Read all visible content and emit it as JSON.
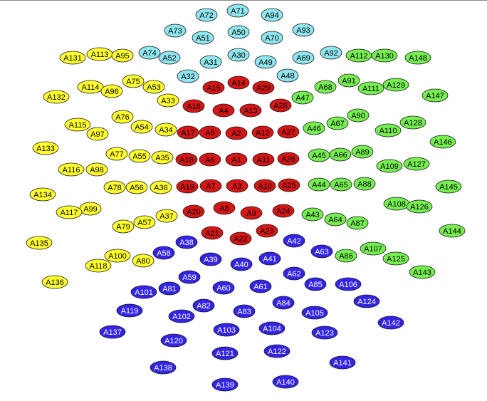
{
  "colors": {
    "cyan": "#8fe6ee",
    "red": "#d51616",
    "yellow": "#ffff2e",
    "green": "#76ee52",
    "blue": "#3324e6",
    "outline": "#1a1a1a",
    "text_dark": "#000000",
    "text_light": "#ffffff"
  },
  "groups": {
    "cyan": [
      "A72",
      "A71",
      "A94",
      "A73",
      "A50",
      "A51",
      "A70",
      "A93",
      "A74",
      "A52",
      "A30",
      "A31",
      "A49",
      "A69",
      "A92",
      "A32",
      "A48"
    ],
    "red": [
      "A15",
      "A14",
      "A29",
      "A16",
      "A4",
      "A13",
      "A28",
      "A17",
      "A5",
      "A2",
      "A12",
      "A27",
      "A18",
      "A6",
      "A1",
      "A11",
      "A26",
      "A19",
      "A7",
      "A3",
      "A10",
      "A25",
      "A20",
      "A8",
      "A9",
      "A24",
      "A21",
      "A22",
      "A23"
    ],
    "yellow": [
      "A131",
      "A113",
      "A95",
      "A114",
      "A75",
      "A53",
      "A96",
      "A132",
      "A33",
      "A76",
      "A115",
      "A54",
      "A34",
      "A97",
      "A133",
      "A77",
      "A55",
      "A35",
      "A116",
      "A98",
      "A134",
      "A78",
      "A56",
      "A36",
      "A99",
      "A117",
      "A37",
      "A79",
      "A57",
      "A135",
      "A100",
      "A80",
      "A118",
      "A136"
    ],
    "green": [
      "A112",
      "A130",
      "A148",
      "A68",
      "A91",
      "A111",
      "A129",
      "A47",
      "A147",
      "A90",
      "A46",
      "A67",
      "A128",
      "A110",
      "A146",
      "A45",
      "A66",
      "A89",
      "A127",
      "A109",
      "A145",
      "A44",
      "A65",
      "A88",
      "A108",
      "A126",
      "A43",
      "A64",
      "A87",
      "A144",
      "A107",
      "A86",
      "A125",
      "A143"
    ],
    "blue": [
      "A38",
      "A58",
      "A42",
      "A63",
      "A39",
      "A40",
      "A41",
      "A62",
      "A59",
      "A85",
      "A106",
      "A81",
      "A101",
      "A60",
      "A61",
      "A84",
      "A124",
      "A82",
      "A83",
      "A119",
      "A102",
      "A105",
      "A142",
      "A103",
      "A104",
      "A123",
      "A137",
      "A120",
      "A121",
      "A122",
      "A141",
      "A138",
      "A139",
      "A140"
    ]
  }
}
